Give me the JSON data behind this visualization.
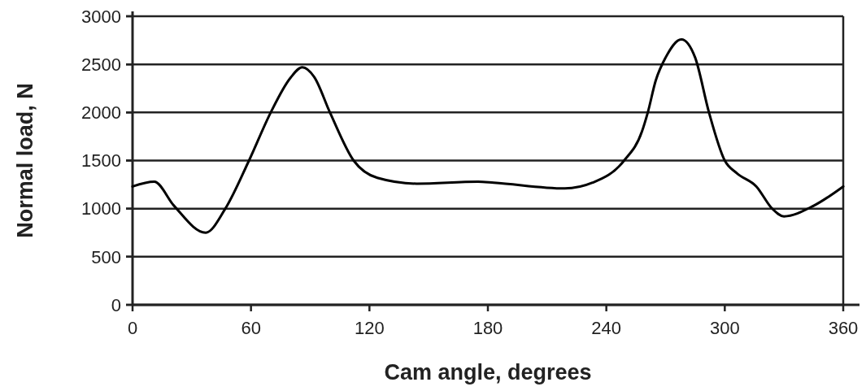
{
  "chart_data": {
    "type": "line",
    "xlabel": "Cam angle, degrees",
    "ylabel": "Normal load, N",
    "xlim": [
      0,
      360
    ],
    "xticks": [
      0,
      60,
      120,
      180,
      240,
      300,
      360
    ],
    "ylim": [
      0,
      3000
    ],
    "yticks": [
      0,
      500,
      1000,
      1500,
      2000,
      2500,
      3000
    ],
    "grid": "y",
    "marker": "none",
    "line_style": "solid",
    "series": [
      {
        "color": "#000000",
        "x": [
          0,
          11,
          21,
          37,
          47,
          59,
          70,
          80,
          86,
          92,
          100,
          112,
          124,
          144,
          175,
          183,
          219,
          233,
          249,
          258,
          261,
          265,
          270,
          278,
          285,
          292,
          300,
          306,
          316,
          324,
          330,
          345,
          360
        ],
        "values": [
          1230,
          1280,
          1030,
          750,
          1000,
          1500,
          2000,
          2360,
          2470,
          2370,
          2000,
          1500,
          1320,
          1260,
          1280,
          1270,
          1210,
          1270,
          1500,
          1800,
          2000,
          2330,
          2570,
          2760,
          2570,
          2000,
          1500,
          1370,
          1230,
          1000,
          920,
          1030,
          1230
        ]
      }
    ]
  }
}
